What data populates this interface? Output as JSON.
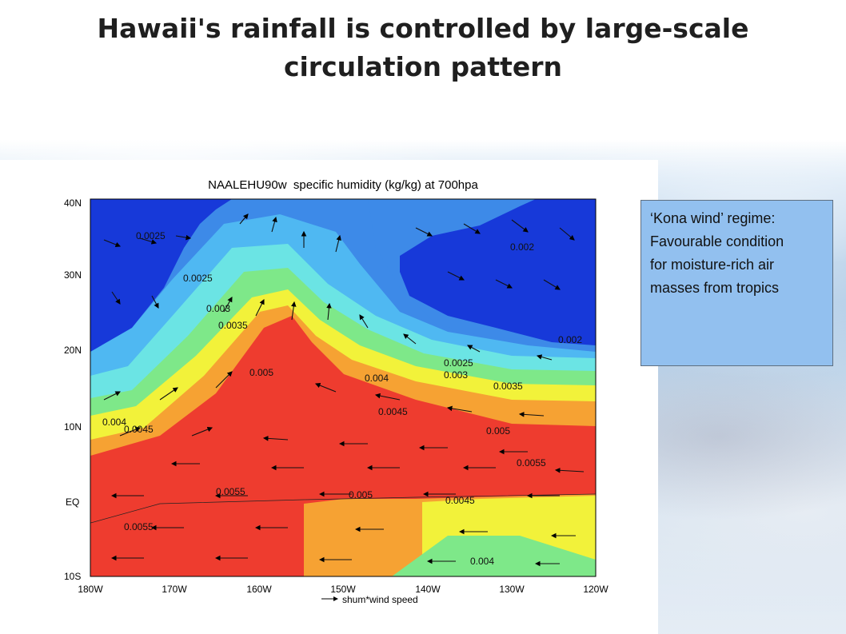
{
  "slide": {
    "title": "Hawaii's rainfall is controlled by large-scale circulation pattern"
  },
  "figure": {
    "title": "NAALEHU90w  specific humidity (kg/kg) at 700hpa",
    "legend": "shum*wind speed",
    "y_ticks": [
      "40N",
      "30N",
      "20N",
      "10N",
      "EQ",
      "10S"
    ],
    "x_ticks": [
      "180W",
      "170W",
      "160W",
      "150W",
      "140W",
      "130W",
      "120W"
    ],
    "contour_labels": [
      "0.0025",
      "0.002",
      "0.0025",
      "0.003",
      "0.0035",
      "0.002",
      "0.005",
      "0.0025",
      "0.003",
      "0.004",
      "0.0035",
      "0.0045",
      "0.004",
      "0.0045",
      "0.005",
      "0.0055",
      "0.0055",
      "0.005",
      "0.0045",
      "0.0055",
      "0.004"
    ],
    "colors": {
      "lt_0_002": "#1739d9",
      "0_002_0_0025": "#3d8ae8",
      "0_0025_0_003": "#4fb8f2",
      "0_003_0_0035": "#6be4e4",
      "0_0035_0_004": "#7ee889",
      "0_004_0_0045": "#f2f23a",
      "0_0045_0_005": "#f6a233",
      "gt_0_005": "#ee3c2f"
    }
  },
  "note": {
    "lines": [
      "‘Kona wind’ regime:",
      "Favourable condition",
      "for moisture-rich air",
      "masses from tropics"
    ]
  }
}
